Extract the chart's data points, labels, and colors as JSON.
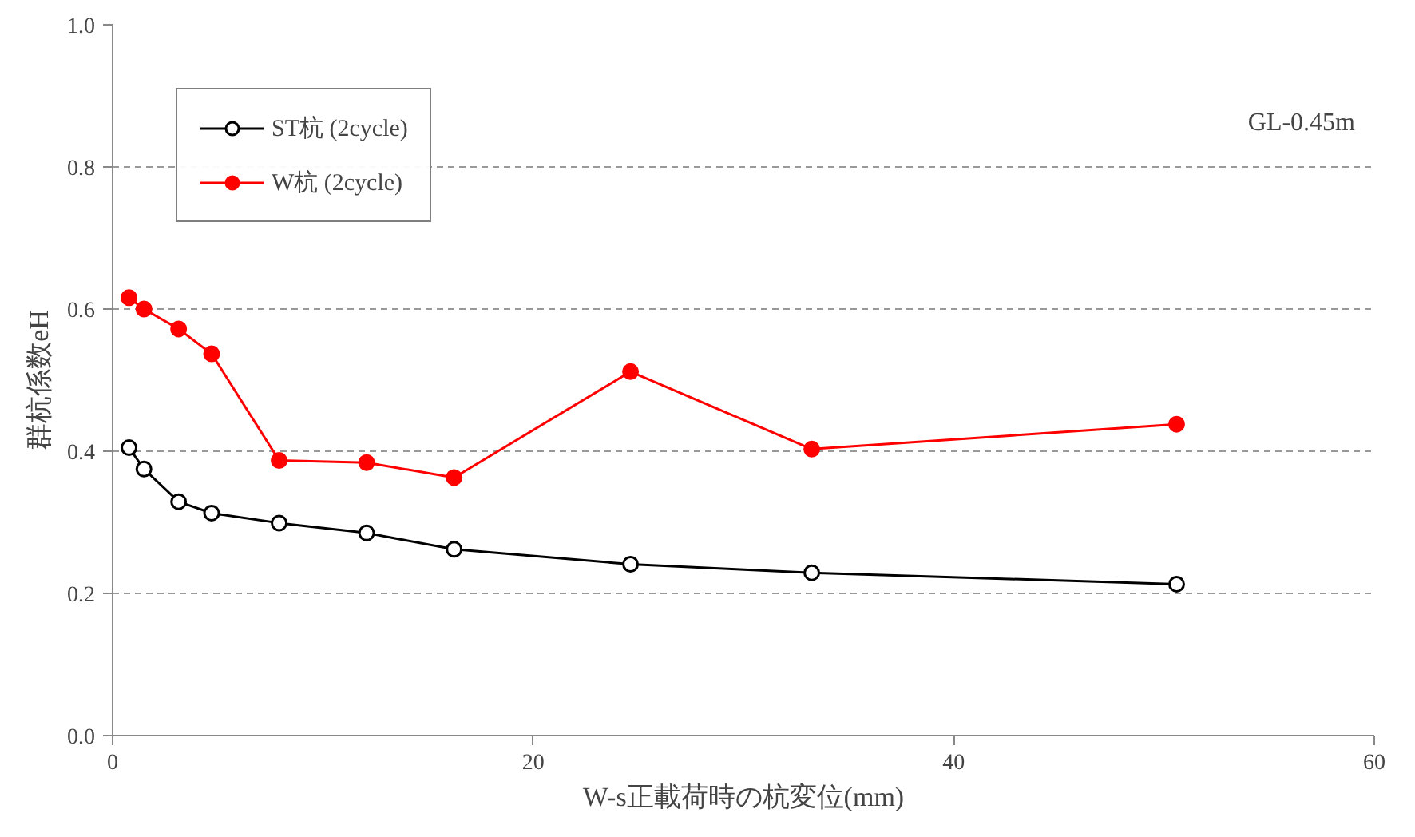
{
  "chart_data": {
    "type": "line",
    "xlabel": "W-s正載荷時の杭変位(mm)",
    "ylabel": "群杭係数eH",
    "annotations": [
      "GL-0.45m"
    ],
    "xlim": [
      0,
      60
    ],
    "xticks": [
      0,
      20,
      40,
      60
    ],
    "ylim": [
      0,
      1.0
    ],
    "yticks": [
      {
        "value": 0,
        "label": "0.0"
      },
      0.2,
      0.4,
      0.6,
      0.8,
      {
        "value": 1,
        "label": "1.0"
      }
    ],
    "grid": "y",
    "legend": "top left",
    "line_style": "solid",
    "series": [
      {
        "name": "ST杭 (2cycle)",
        "color": "#000000",
        "marker": "open_circle",
        "x": [
          0.78,
          1.49,
          3.14,
          4.71,
          7.92,
          12.08,
          16.24,
          24.63,
          33.25,
          50.6
        ],
        "values": [
          0.405,
          0.375,
          0.329,
          0.313,
          0.299,
          0.285,
          0.262,
          0.241,
          0.229,
          0.213
        ]
      },
      {
        "name": "W杭 (2cycle)",
        "color": "#ff0000",
        "marker": "circle",
        "x": [
          0.78,
          1.49,
          3.14,
          4.71,
          7.92,
          12.08,
          16.24,
          24.63,
          33.25,
          50.6
        ],
        "values": [
          0.616,
          0.6,
          0.572,
          0.537,
          0.387,
          0.384,
          0.363,
          0.512,
          0.403,
          0.438
        ]
      }
    ]
  }
}
